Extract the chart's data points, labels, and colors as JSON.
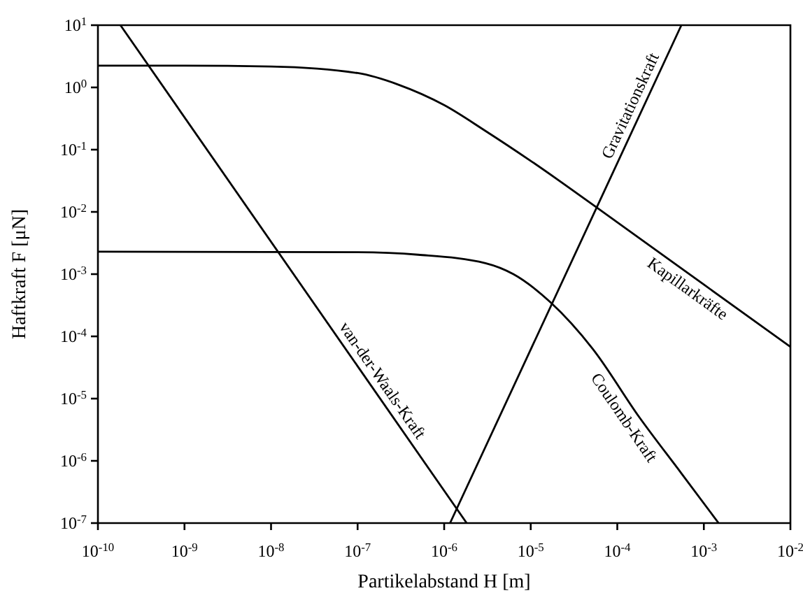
{
  "chart_data": {
    "type": "line",
    "xlabel": "Partikelabstand H [m]",
    "ylabel": "Haftkraft F [μN]",
    "log": "xy",
    "xlim": [
      1e-10,
      0.01
    ],
    "ylim": [
      1e-07,
      10
    ],
    "xticks": [
      {
        "value": 1e-10,
        "label": "10$^{-10}$"
      },
      {
        "value": 1e-09,
        "label": "10$^{-9}$"
      },
      {
        "value": 1e-08,
        "label": "10$^{-8}$"
      },
      {
        "value": 1e-07,
        "label": "10$^{-7}$"
      },
      {
        "value": 1e-06,
        "label": "10$^{-6}$"
      },
      {
        "value": 1e-05,
        "label": "10$^{-5}$"
      },
      {
        "value": 0.0001,
        "label": "10$^{-4}$"
      },
      {
        "value": 0.001,
        "label": "10$^{-3}$"
      },
      {
        "value": 0.01,
        "label": "10$^{-2}$"
      }
    ],
    "yticks": [
      {
        "value": 1e-07,
        "label": "10$^{-7}$"
      },
      {
        "value": 1e-06,
        "label": "10$^{-6}$"
      },
      {
        "value": 1e-05,
        "label": "10$^{-5}$"
      },
      {
        "value": 0.0001,
        "label": "10$^{-4}$"
      },
      {
        "value": 0.001,
        "label": "10$^{-3}$"
      },
      {
        "value": 0.01,
        "label": "10$^{-2}$"
      },
      {
        "value": 0.1,
        "label": "10$^{-1}$"
      },
      {
        "value": 1,
        "label": "10$^{0}$"
      },
      {
        "value": 10,
        "label": "10$^{1}$"
      }
    ],
    "marker": "none",
    "line_style": "solid",
    "series": [
      {
        "name": "van-der-Waals-Kraft",
        "color": "#000000",
        "x": [
          1.82e-10,
          1.82e-06
        ],
        "values": [
          10,
          1e-07
        ]
      },
      {
        "name": "Gravitationskraft",
        "color": "#000000",
        "x": [
          1.17e-06,
          0.00055
        ],
        "values": [
          1e-07,
          10
        ]
      },
      {
        "name": "Kapillarkräfte",
        "color": "#000000",
        "x": [
          1e-10,
          1e-09,
          1e-08,
          1e-07,
          3e-07,
          1e-06,
          3e-06,
          1e-05,
          0.0001,
          0.001,
          0.01
        ],
        "values": [
          2.24,
          2.24,
          2.17,
          1.7,
          1.1,
          0.52,
          0.2,
          0.066,
          0.0068,
          0.00068,
          6.8e-05
        ]
      },
      {
        "name": "Coulomb-Kraft",
        "color": "#000000",
        "x": [
          1e-10,
          1e-07,
          5e-07,
          3e-06,
          6.3e-06,
          1.7e-05,
          5.2e-05,
          0.00018,
          0.00055,
          0.00148
        ],
        "values": [
          0.0023,
          0.00225,
          0.00205,
          0.0015,
          0.001,
          0.00035,
          6.3e-05,
          5e-06,
          6.3e-07,
          1e-07
        ]
      }
    ]
  }
}
